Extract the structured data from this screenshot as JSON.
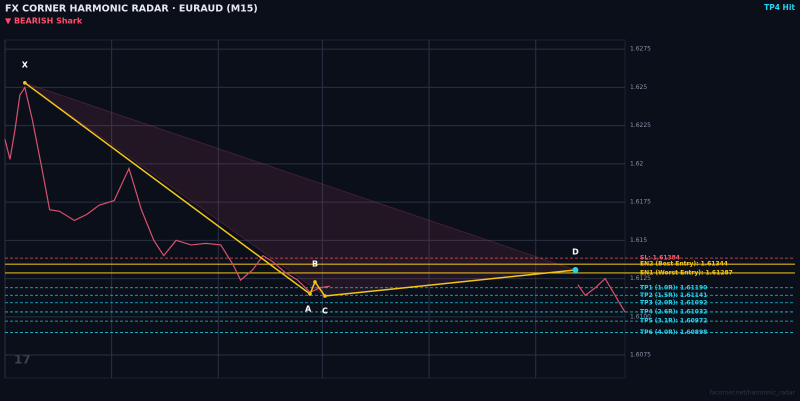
{
  "chart_data": {
    "type": "line",
    "title": "FX CORNER HARMONIC RADAR  ·  EURAUD (M15)",
    "subtitle": "▼ BEARISH  Shark",
    "status": "TP4 Hit",
    "watermark": "17",
    "footer": "fxcorner.net/harmonic_radar",
    "xlim": [
      0,
      250
    ],
    "ylim": [
      1.606,
      1.6281
    ],
    "yticks": [
      1.6275,
      1.625,
      1.6225,
      1.62,
      1.6175,
      1.615,
      1.6125,
      {
        "value": 1.61,
        "label": "1.6100"
      },
      1.6075
    ],
    "xgrid": [
      0,
      43,
      86,
      128,
      171,
      214
    ],
    "grid": true,
    "series": [
      {
        "color": "#d9506e",
        "x": [
          0,
          2,
          4,
          6,
          8,
          11,
          15,
          18,
          22,
          28,
          33,
          38,
          44,
          50,
          55,
          60,
          64,
          69,
          75,
          81,
          87,
          92,
          95,
          100,
          104,
          108,
          113,
          118,
          123,
          127,
          131,
          132,
          231,
          234,
          238,
          242,
          246,
          250
        ],
        "values": [
          1.6216,
          1.6203,
          1.6222,
          1.6245,
          1.625,
          1.6229,
          1.6196,
          1.617,
          1.6169,
          1.6163,
          1.6167,
          1.6173,
          1.6176,
          1.6197,
          1.617,
          1.615,
          1.614,
          1.615,
          1.6147,
          1.6148,
          1.6147,
          1.6134,
          1.6124,
          1.6131,
          1.614,
          1.6136,
          1.6129,
          1.6124,
          1.6116,
          1.6119,
          1.612,
          null,
          1.6121,
          1.6114,
          1.6119,
          1.6125,
          1.6114,
          1.6103
        ]
      }
    ],
    "points": [
      {
        "name": "X",
        "x": 8,
        "value": 1.6253
      },
      {
        "name": "A",
        "x": 123,
        "value": 1.61149
      },
      {
        "name": "B",
        "x": 125,
        "value": 1.61228
      },
      {
        "name": "C",
        "x": 129,
        "value": 1.61136
      },
      {
        "name": "D",
        "x": 230,
        "value": 1.61306
      }
    ],
    "levels": [
      {
        "label": "SL: 1.61384",
        "value": 1.61384,
        "color": "#ff5a6a"
      },
      {
        "label": "EN2 (Best Entry): 1.61344",
        "value": 1.61344,
        "color": "#f5c518"
      },
      {
        "label": "EN1 (Worst Entry): 1.61287",
        "value": 1.61287,
        "color": "#f5c518"
      },
      {
        "label": "TP1 (1.0R): 1.61190",
        "value": 1.6119,
        "color": "#22d3ee"
      },
      {
        "label": "TP2 (1.5R): 1.61141",
        "value": 1.61141,
        "color": "#22d3ee"
      },
      {
        "label": "TP3 (2.0R): 1.61092",
        "value": 1.61092,
        "color": "#22d3ee"
      },
      {
        "label": "TP4 (2.6R): 1.61032",
        "value": 1.61032,
        "color": "#22d3ee"
      },
      {
        "label": "TP5 (3.1R): 1.60972",
        "value": 1.60972,
        "color": "#22d3ee"
      },
      {
        "label": "TP6 (4.0R): 1.60898",
        "value": 1.60898,
        "color": "#22d3ee"
      }
    ]
  }
}
